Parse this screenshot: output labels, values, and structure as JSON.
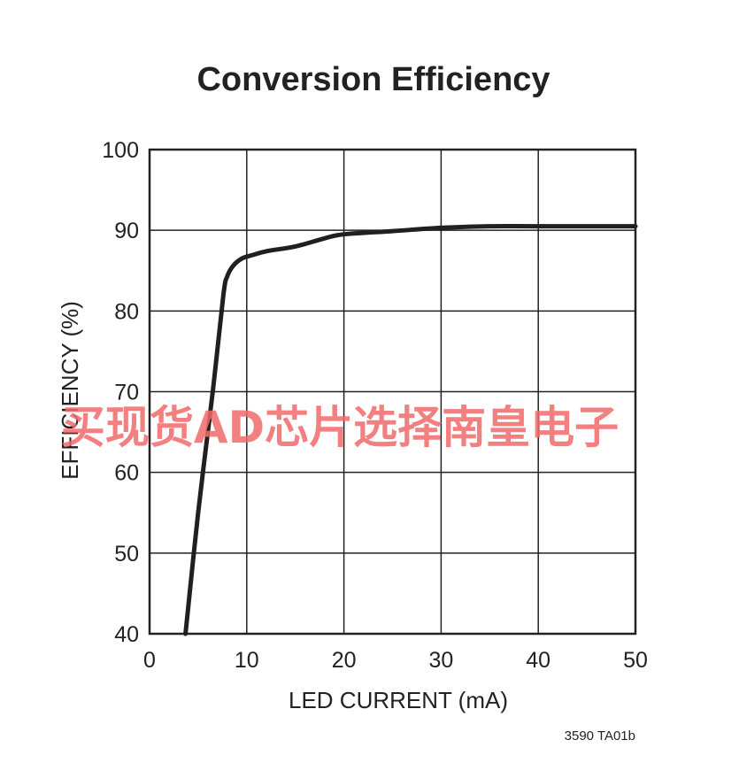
{
  "chart_data": {
    "type": "line",
    "title": "Conversion Efficiency",
    "xlabel": "LED CURRENT (mA)",
    "ylabel": "EFFICIENCY (%)",
    "xlim": [
      0,
      50
    ],
    "ylim": [
      40,
      100
    ],
    "x_ticks": [
      0,
      10,
      20,
      30,
      40,
      50
    ],
    "y_ticks": [
      40,
      50,
      60,
      70,
      80,
      90,
      100
    ],
    "grid": true,
    "legend": "none",
    "series": [
      {
        "color": "#231f20",
        "points": [
          [
            3.7,
            40
          ],
          [
            5.0,
            55
          ],
          [
            6.5,
            70
          ],
          [
            7.6,
            82
          ],
          [
            8.0,
            84.3
          ],
          [
            8.6,
            85.6
          ],
          [
            9.5,
            86.5
          ],
          [
            10.5,
            86.9
          ],
          [
            12.0,
            87.4
          ],
          [
            15.0,
            88.0
          ],
          [
            18.0,
            89.0
          ],
          [
            20.0,
            89.5
          ],
          [
            25.0,
            89.9
          ],
          [
            30.0,
            90.3
          ],
          [
            35.0,
            90.5
          ],
          [
            40.0,
            90.5
          ],
          [
            50.0,
            90.5
          ]
        ]
      }
    ],
    "figure_code": "3590 TA01b"
  },
  "watermark": "买现货AD芯片选择南皇电子"
}
